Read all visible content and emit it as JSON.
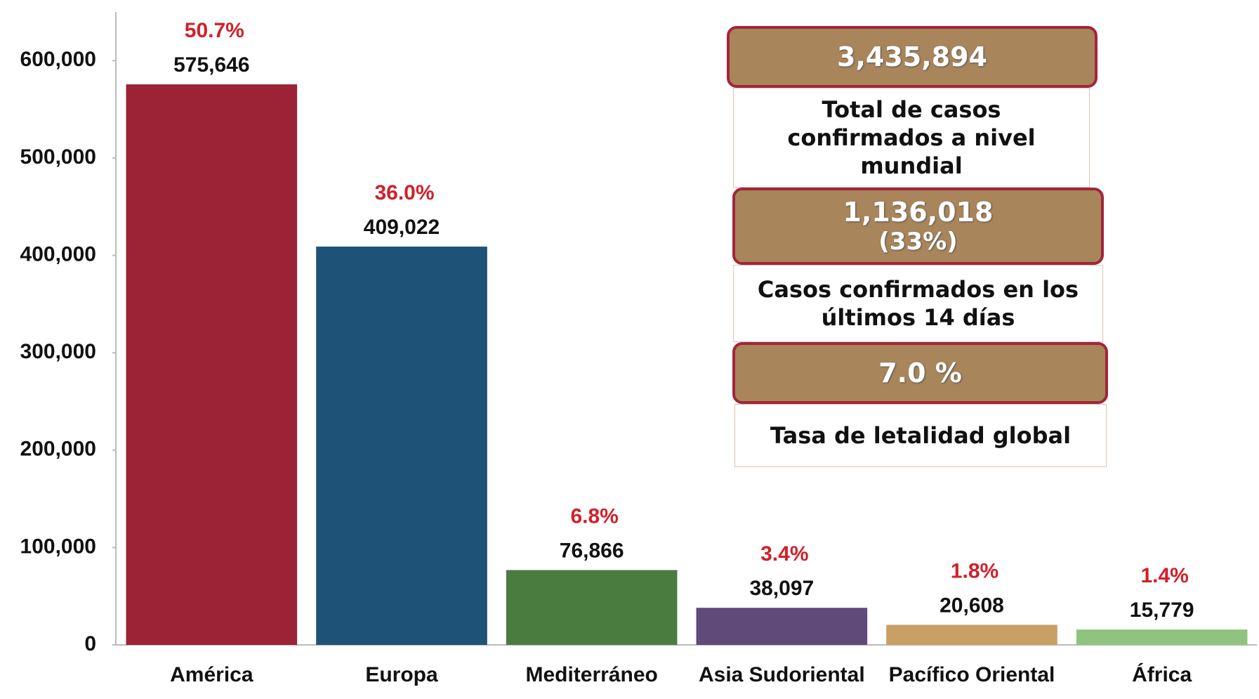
{
  "chart_data": {
    "type": "bar",
    "categories": [
      "América",
      "Europa",
      "Mediterráneo",
      "Asia Sudoriental",
      "Pacífico Oriental",
      "África"
    ],
    "values": [
      575646,
      409022,
      76866,
      38097,
      20608,
      15779
    ],
    "value_labels": [
      "575,646",
      "409,022",
      "76,866",
      "38,097",
      "20,608",
      "15,779"
    ],
    "percent_values": [
      50.7,
      36.0,
      6.8,
      3.4,
      1.8,
      1.4
    ],
    "percent_labels": [
      "50.7%",
      "36.0%",
      "6.8%",
      "3.4%",
      "1.8%",
      "1.4%"
    ],
    "colors": [
      "#9b2335",
      "#1f5277",
      "#4a7c3f",
      "#5f4a7a",
      "#c9a063",
      "#8fc47f"
    ],
    "ylim": [
      0,
      650000
    ],
    "yticks": [
      0,
      {
        "value": 100000,
        "label": "100,000"
      },
      {
        "value": 200000,
        "label": "200,000"
      },
      {
        "value": 300000,
        "label": "300,000"
      },
      {
        "value": 400000,
        "label": "400,000"
      },
      {
        "value": 500000,
        "label": "500,000"
      },
      {
        "value": 600000,
        "label": "600,000"
      }
    ]
  },
  "stats": [
    {
      "value": "3,435,894",
      "label": "Total de casos confirmados a nivel mundial"
    },
    {
      "value": "1,136,018",
      "sub": "(33%)",
      "label": "Casos confirmados en los últimos 14 días"
    },
    {
      "value": "7.0 %",
      "label": "Tasa de letalidad global"
    }
  ]
}
